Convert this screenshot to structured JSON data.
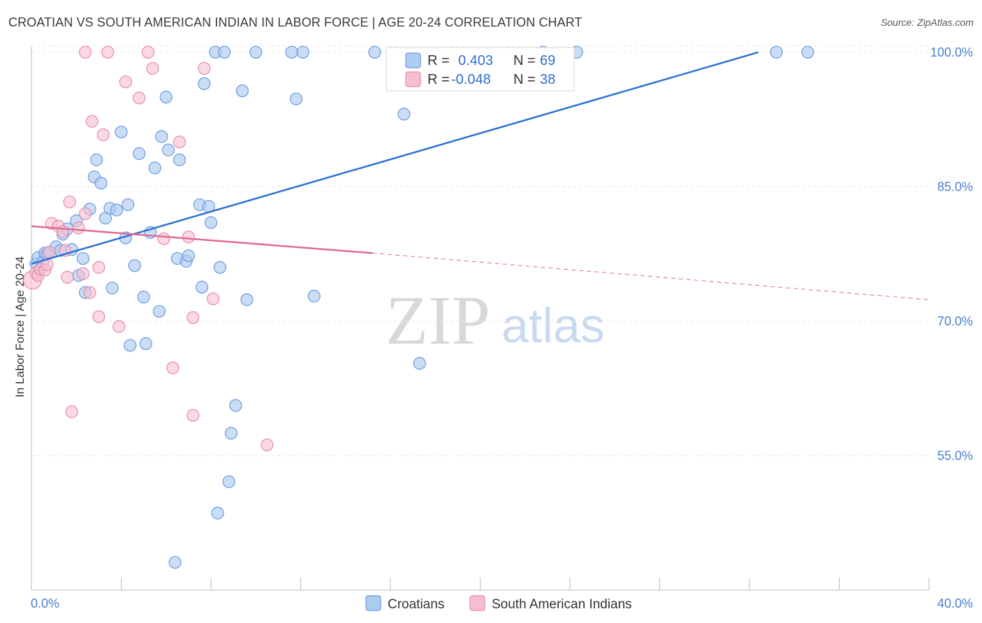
{
  "title": "CROATIAN VS SOUTH AMERICAN INDIAN IN LABOR FORCE | AGE 20-24 CORRELATION CHART",
  "source": "Source: ZipAtlas.com",
  "colors": {
    "croatians_fill": "#aecbf0",
    "croatians_stroke": "#6a9be0",
    "croatians_line": "#2e73d1",
    "sai_fill": "#f6bfd1",
    "sai_stroke": "#e88aaa",
    "sai_line": "#e06a96",
    "tick_label": "#4a7fd0",
    "grid": "#e6e6e6"
  },
  "chart_data": {
    "type": "scatter",
    "title": "CROATIAN VS SOUTH AMERICAN INDIAN IN LABOR FORCE | AGE 20-24 CORRELATION CHART",
    "xlabel": "",
    "ylabel": "In Labor Force | Age 20-24",
    "xlim": [
      0,
      40
    ],
    "ylim": [
      40,
      101
    ],
    "x_tick_labels": [
      "0.0%",
      "40.0%"
    ],
    "y_ticks": [
      55,
      70,
      85,
      100
    ],
    "y_tick_labels": [
      "55.0%",
      "70.0%",
      "85.0%",
      "100.0%"
    ],
    "legend": {
      "stats": [
        {
          "r_label": "R =",
          "r_value": "0.403",
          "n_label": "N =",
          "n_value": "69"
        },
        {
          "r_label": "R =",
          "r_value": "-0.048",
          "n_label": "N =",
          "n_value": "38"
        }
      ],
      "series_names": [
        "Croatians",
        "South American Indians"
      ]
    },
    "watermark": {
      "zip": "ZIP",
      "atlas": "atlas"
    },
    "series": [
      {
        "name": "Croatians",
        "trend": {
          "x": [
            0.0,
            32.4
          ],
          "y": [
            76.4,
            100.0
          ]
        },
        "points": [
          [
            0.2,
            76.4
          ],
          [
            0.3,
            77.1
          ],
          [
            0.4,
            75.8
          ],
          [
            0.5,
            76.6
          ],
          [
            0.6,
            77.6
          ],
          [
            0.7,
            77.5
          ],
          [
            0.8,
            77.7
          ],
          [
            1.1,
            78.3
          ],
          [
            1.3,
            77.9
          ],
          [
            1.4,
            79.7
          ],
          [
            1.6,
            80.3
          ],
          [
            1.8,
            78.0
          ],
          [
            2.0,
            81.2
          ],
          [
            2.1,
            75.1
          ],
          [
            2.3,
            77.0
          ],
          [
            2.4,
            73.2
          ],
          [
            2.6,
            82.5
          ],
          [
            2.8,
            86.1
          ],
          [
            2.9,
            88.0
          ],
          [
            3.1,
            85.4
          ],
          [
            3.3,
            81.5
          ],
          [
            3.5,
            82.6
          ],
          [
            3.6,
            73.7
          ],
          [
            3.8,
            82.4
          ],
          [
            4.0,
            91.1
          ],
          [
            4.2,
            79.3
          ],
          [
            4.3,
            83.0
          ],
          [
            4.4,
            67.3
          ],
          [
            4.6,
            76.2
          ],
          [
            4.8,
            88.7
          ],
          [
            5.0,
            72.7
          ],
          [
            5.1,
            67.5
          ],
          [
            5.3,
            79.9
          ],
          [
            5.5,
            87.1
          ],
          [
            5.7,
            71.1
          ],
          [
            5.8,
            90.6
          ],
          [
            6.0,
            95.0
          ],
          [
            6.1,
            89.1
          ],
          [
            6.4,
            43.1
          ],
          [
            6.5,
            77.0
          ],
          [
            6.6,
            88.0
          ],
          [
            6.9,
            76.7
          ],
          [
            7.0,
            77.3
          ],
          [
            7.5,
            83.0
          ],
          [
            7.6,
            73.8
          ],
          [
            7.7,
            96.5
          ],
          [
            7.9,
            82.8
          ],
          [
            8.0,
            81.0
          ],
          [
            8.2,
            100.0
          ],
          [
            8.3,
            48.6
          ],
          [
            8.4,
            76.0
          ],
          [
            8.6,
            100.0
          ],
          [
            8.8,
            52.1
          ],
          [
            8.9,
            57.5
          ],
          [
            9.1,
            60.6
          ],
          [
            9.4,
            95.7
          ],
          [
            9.6,
            72.4
          ],
          [
            10.0,
            100.0
          ],
          [
            11.6,
            100.0
          ],
          [
            11.8,
            94.8
          ],
          [
            12.1,
            100.0
          ],
          [
            12.6,
            72.8
          ],
          [
            15.3,
            100.0
          ],
          [
            16.6,
            93.1
          ],
          [
            17.3,
            65.3
          ],
          [
            22.8,
            100.0
          ],
          [
            24.3,
            100.0
          ],
          [
            33.2,
            100.0
          ],
          [
            34.6,
            100.0
          ]
        ]
      },
      {
        "name": "South American Indians",
        "trend": {
          "x": [
            0.0,
            15.2
          ],
          "y": [
            80.6,
            77.6
          ]
        },
        "trend_ext": {
          "x": [
            15.2,
            40.0
          ],
          "y": [
            77.6,
            72.4
          ]
        },
        "points": [
          [
            0.05,
            74.6
          ],
          [
            0.2,
            75.4
          ],
          [
            0.3,
            75.1
          ],
          [
            0.4,
            75.8
          ],
          [
            0.6,
            75.7
          ],
          [
            0.7,
            76.3
          ],
          [
            0.8,
            77.7
          ],
          [
            0.9,
            80.9
          ],
          [
            1.2,
            80.6
          ],
          [
            1.4,
            80.0
          ],
          [
            1.5,
            77.9
          ],
          [
            1.6,
            74.9
          ],
          [
            1.7,
            83.3
          ],
          [
            1.8,
            59.9
          ],
          [
            2.1,
            80.4
          ],
          [
            2.3,
            75.3
          ],
          [
            2.4,
            82.0
          ],
          [
            2.6,
            73.2
          ],
          [
            2.7,
            92.3
          ],
          [
            3.0,
            76.0
          ],
          [
            3.0,
            70.5
          ],
          [
            3.2,
            90.8
          ],
          [
            3.4,
            100.0
          ],
          [
            3.9,
            69.4
          ],
          [
            4.2,
            96.7
          ],
          [
            4.8,
            94.9
          ],
          [
            5.2,
            100.0
          ],
          [
            5.4,
            98.2
          ],
          [
            5.9,
            79.2
          ],
          [
            6.3,
            64.8
          ],
          [
            6.6,
            90.0
          ],
          [
            7.0,
            79.4
          ],
          [
            7.2,
            59.5
          ],
          [
            7.2,
            70.4
          ],
          [
            7.7,
            98.2
          ],
          [
            8.1,
            72.5
          ],
          [
            10.5,
            56.2
          ],
          [
            2.4,
            100.0
          ]
        ]
      }
    ]
  }
}
